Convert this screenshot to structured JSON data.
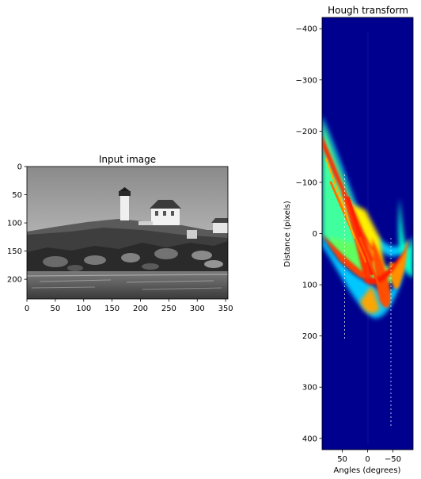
{
  "chart_data": [
    {
      "type": "image",
      "title": "Input image",
      "xlabel": "",
      "ylabel": "",
      "xlim": [
        0,
        354
      ],
      "ylim": [
        235,
        0
      ],
      "xticks": [
        "0",
        "50",
        "100",
        "150",
        "200",
        "250",
        "300",
        "350"
      ],
      "yticks": [
        "0",
        "50",
        "100",
        "150",
        "200"
      ],
      "colormap": "gray"
    },
    {
      "type": "heatmap",
      "title": "Hough transform",
      "xlabel": "Angles (degrees)",
      "ylabel": "Distance (pixels)",
      "xlim": [
        90,
        -90
      ],
      "ylim": [
        422,
        -422
      ],
      "xticks": [
        "50",
        "0",
        "−50"
      ],
      "yticks": [
        "−400",
        "−300",
        "−200",
        "−100",
        "0",
        "100",
        "200",
        "300",
        "400"
      ],
      "colormap": "jet",
      "colors": {
        "background": "#00008f",
        "peak": "#ff0000",
        "mid": "#00ffff",
        "low": "#0060ff"
      }
    }
  ]
}
